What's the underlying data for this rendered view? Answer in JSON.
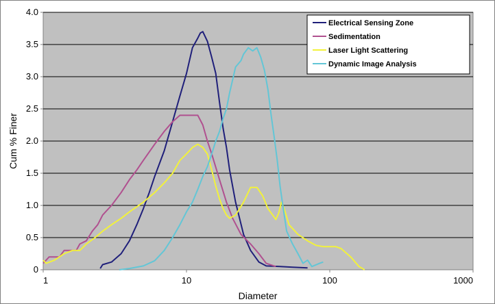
{
  "chart_data": {
    "type": "line",
    "title": "",
    "xlabel": "Diameter",
    "ylabel": "Cum % Finer",
    "x_scale": "log",
    "xlim": [
      1,
      1000
    ],
    "ylim": [
      0,
      4.0
    ],
    "x_ticks": [
      1,
      10,
      100,
      1000
    ],
    "x_tick_labels": [
      "1",
      "10",
      "100",
      "1000"
    ],
    "y_ticks": [
      0,
      0.5,
      1.0,
      1.5,
      2.0,
      2.5,
      3.0,
      3.5,
      4.0
    ],
    "y_tick_labels": [
      "0",
      "0.5",
      "1.0",
      "1.5",
      "2.0",
      "2.5",
      "3.0",
      "3.5",
      "4.0"
    ],
    "grid": "horizontal",
    "plot_background": "#c0c0c0",
    "legend_position": "top-right",
    "series": [
      {
        "name": "Electrical Sensing Zone",
        "color": "#1f1f7a",
        "points": [
          [
            2.5,
            0.02
          ],
          [
            2.6,
            0.08
          ],
          [
            3,
            0.12
          ],
          [
            3.5,
            0.25
          ],
          [
            4,
            0.45
          ],
          [
            4.5,
            0.7
          ],
          [
            5,
            0.95
          ],
          [
            5.5,
            1.2
          ],
          [
            6,
            1.45
          ],
          [
            7,
            1.85
          ],
          [
            8,
            2.3
          ],
          [
            9,
            2.7
          ],
          [
            10,
            3.05
          ],
          [
            11,
            3.45
          ],
          [
            12,
            3.6
          ],
          [
            12.5,
            3.68
          ],
          [
            13,
            3.7
          ],
          [
            14,
            3.55
          ],
          [
            15,
            3.3
          ],
          [
            16,
            3.05
          ],
          [
            17,
            2.6
          ],
          [
            18,
            2.2
          ],
          [
            19,
            1.9
          ],
          [
            20,
            1.55
          ],
          [
            22,
            1.05
          ],
          [
            25,
            0.55
          ],
          [
            28,
            0.3
          ],
          [
            32,
            0.12
          ],
          [
            36,
            0.06
          ],
          [
            45,
            0.05
          ],
          [
            55,
            0.04
          ],
          [
            70,
            0.03
          ]
        ]
      },
      {
        "name": "Sedimentation",
        "color": "#b0508f",
        "points": [
          [
            1,
            0.1
          ],
          [
            1.1,
            0.2
          ],
          [
            1.3,
            0.2
          ],
          [
            1.4,
            0.3
          ],
          [
            1.7,
            0.3
          ],
          [
            1.8,
            0.4
          ],
          [
            2,
            0.45
          ],
          [
            2.2,
            0.6
          ],
          [
            2.4,
            0.7
          ],
          [
            2.6,
            0.85
          ],
          [
            3,
            1.0
          ],
          [
            3.5,
            1.2
          ],
          [
            4,
            1.4
          ],
          [
            4.5,
            1.55
          ],
          [
            5,
            1.7
          ],
          [
            6,
            1.95
          ],
          [
            7,
            2.15
          ],
          [
            8,
            2.3
          ],
          [
            9,
            2.4
          ],
          [
            10,
            2.4
          ],
          [
            12,
            2.4
          ],
          [
            13,
            2.25
          ],
          [
            14,
            2.0
          ],
          [
            15,
            1.8
          ],
          [
            17,
            1.4
          ],
          [
            19,
            1.05
          ],
          [
            21,
            0.8
          ],
          [
            24,
            0.55
          ],
          [
            28,
            0.4
          ],
          [
            32,
            0.25
          ],
          [
            36,
            0.1
          ],
          [
            42,
            0.05
          ]
        ]
      },
      {
        "name": "Laser Light Scattering",
        "color": "#f2f23a",
        "points": [
          [
            1,
            0.15
          ],
          [
            1.05,
            0.1
          ],
          [
            1.2,
            0.15
          ],
          [
            1.4,
            0.25
          ],
          [
            1.6,
            0.3
          ],
          [
            1.8,
            0.3
          ],
          [
            2,
            0.4
          ],
          [
            2.3,
            0.5
          ],
          [
            2.6,
            0.6
          ],
          [
            3,
            0.7
          ],
          [
            3.5,
            0.8
          ],
          [
            4,
            0.9
          ],
          [
            5,
            1.05
          ],
          [
            6,
            1.2
          ],
          [
            7,
            1.35
          ],
          [
            8,
            1.5
          ],
          [
            9,
            1.7
          ],
          [
            10,
            1.8
          ],
          [
            11,
            1.9
          ],
          [
            12,
            1.95
          ],
          [
            13,
            1.9
          ],
          [
            14,
            1.8
          ],
          [
            15,
            1.55
          ],
          [
            16,
            1.3
          ],
          [
            17,
            1.1
          ],
          [
            18,
            0.95
          ],
          [
            19,
            0.85
          ],
          [
            20,
            0.8
          ],
          [
            22,
            0.85
          ],
          [
            25,
            1.05
          ],
          [
            28,
            1.28
          ],
          [
            31,
            1.28
          ],
          [
            34,
            1.15
          ],
          [
            37,
            0.95
          ],
          [
            40,
            0.85
          ],
          [
            42,
            0.78
          ],
          [
            44,
            0.88
          ],
          [
            46,
            1.05
          ],
          [
            48,
            0.95
          ],
          [
            52,
            0.7
          ],
          [
            60,
            0.55
          ],
          [
            70,
            0.45
          ],
          [
            80,
            0.38
          ],
          [
            90,
            0.36
          ],
          [
            110,
            0.36
          ],
          [
            120,
            0.33
          ],
          [
            140,
            0.2
          ],
          [
            160,
            0.05
          ],
          [
            175,
            0.0
          ]
        ]
      },
      {
        "name": "Dynamic Image Analysis",
        "color": "#62c6d6",
        "points": [
          [
            3.4,
            0.0
          ],
          [
            4,
            0.02
          ],
          [
            5,
            0.06
          ],
          [
            6,
            0.14
          ],
          [
            7,
            0.3
          ],
          [
            8,
            0.5
          ],
          [
            9,
            0.7
          ],
          [
            10,
            0.9
          ],
          [
            11,
            1.05
          ],
          [
            12,
            1.25
          ],
          [
            13,
            1.45
          ],
          [
            14,
            1.6
          ],
          [
            15,
            1.8
          ],
          [
            16,
            2.0
          ],
          [
            17,
            2.15
          ],
          [
            18,
            2.35
          ],
          [
            19,
            2.5
          ],
          [
            20,
            2.75
          ],
          [
            21,
            2.95
          ],
          [
            22,
            3.15
          ],
          [
            24,
            3.25
          ],
          [
            25,
            3.35
          ],
          [
            27,
            3.45
          ],
          [
            29,
            3.4
          ],
          [
            31,
            3.45
          ],
          [
            33,
            3.3
          ],
          [
            35,
            3.1
          ],
          [
            37,
            2.8
          ],
          [
            39,
            2.4
          ],
          [
            41,
            2.05
          ],
          [
            43,
            1.7
          ],
          [
            45,
            1.3
          ],
          [
            47,
            1.0
          ],
          [
            50,
            0.6
          ],
          [
            55,
            0.4
          ],
          [
            60,
            0.25
          ],
          [
            65,
            0.1
          ],
          [
            70,
            0.15
          ],
          [
            75,
            0.05
          ],
          [
            85,
            0.1
          ],
          [
            90,
            0.12
          ]
        ]
      }
    ]
  }
}
